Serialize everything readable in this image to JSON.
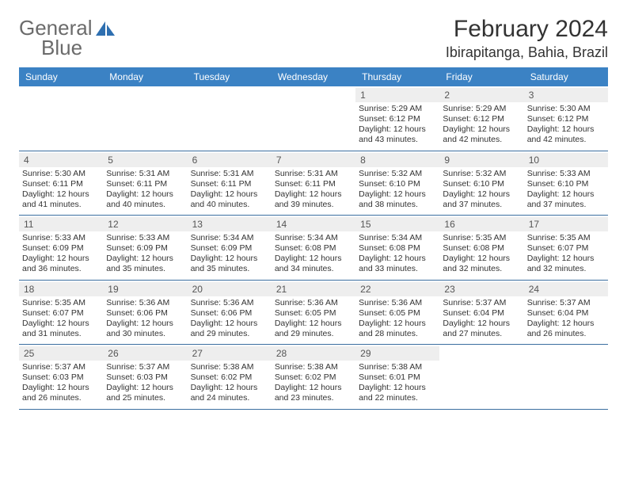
{
  "brand": {
    "part1": "General",
    "part2": "Blue"
  },
  "title": "February 2024",
  "location": "Ibirapitanga, Bahia, Brazil",
  "colors": {
    "header_bg": "#3b82c4",
    "header_text": "#ffffff",
    "daynum_bg": "#eeeeee",
    "border": "#3b6fa0",
    "text": "#333333",
    "logo_text": "#6b6b6b",
    "logo_accent": "#2e6fb0"
  },
  "day_names": [
    "Sunday",
    "Monday",
    "Tuesday",
    "Wednesday",
    "Thursday",
    "Friday",
    "Saturday"
  ],
  "weeks": [
    [
      {
        "num": "",
        "sunrise": "",
        "sunset": "",
        "daylight1": "",
        "daylight2": ""
      },
      {
        "num": "",
        "sunrise": "",
        "sunset": "",
        "daylight1": "",
        "daylight2": ""
      },
      {
        "num": "",
        "sunrise": "",
        "sunset": "",
        "daylight1": "",
        "daylight2": ""
      },
      {
        "num": "",
        "sunrise": "",
        "sunset": "",
        "daylight1": "",
        "daylight2": ""
      },
      {
        "num": "1",
        "sunrise": "Sunrise: 5:29 AM",
        "sunset": "Sunset: 6:12 PM",
        "daylight1": "Daylight: 12 hours",
        "daylight2": "and 43 minutes."
      },
      {
        "num": "2",
        "sunrise": "Sunrise: 5:29 AM",
        "sunset": "Sunset: 6:12 PM",
        "daylight1": "Daylight: 12 hours",
        "daylight2": "and 42 minutes."
      },
      {
        "num": "3",
        "sunrise": "Sunrise: 5:30 AM",
        "sunset": "Sunset: 6:12 PM",
        "daylight1": "Daylight: 12 hours",
        "daylight2": "and 42 minutes."
      }
    ],
    [
      {
        "num": "4",
        "sunrise": "Sunrise: 5:30 AM",
        "sunset": "Sunset: 6:11 PM",
        "daylight1": "Daylight: 12 hours",
        "daylight2": "and 41 minutes."
      },
      {
        "num": "5",
        "sunrise": "Sunrise: 5:31 AM",
        "sunset": "Sunset: 6:11 PM",
        "daylight1": "Daylight: 12 hours",
        "daylight2": "and 40 minutes."
      },
      {
        "num": "6",
        "sunrise": "Sunrise: 5:31 AM",
        "sunset": "Sunset: 6:11 PM",
        "daylight1": "Daylight: 12 hours",
        "daylight2": "and 40 minutes."
      },
      {
        "num": "7",
        "sunrise": "Sunrise: 5:31 AM",
        "sunset": "Sunset: 6:11 PM",
        "daylight1": "Daylight: 12 hours",
        "daylight2": "and 39 minutes."
      },
      {
        "num": "8",
        "sunrise": "Sunrise: 5:32 AM",
        "sunset": "Sunset: 6:10 PM",
        "daylight1": "Daylight: 12 hours",
        "daylight2": "and 38 minutes."
      },
      {
        "num": "9",
        "sunrise": "Sunrise: 5:32 AM",
        "sunset": "Sunset: 6:10 PM",
        "daylight1": "Daylight: 12 hours",
        "daylight2": "and 37 minutes."
      },
      {
        "num": "10",
        "sunrise": "Sunrise: 5:33 AM",
        "sunset": "Sunset: 6:10 PM",
        "daylight1": "Daylight: 12 hours",
        "daylight2": "and 37 minutes."
      }
    ],
    [
      {
        "num": "11",
        "sunrise": "Sunrise: 5:33 AM",
        "sunset": "Sunset: 6:09 PM",
        "daylight1": "Daylight: 12 hours",
        "daylight2": "and 36 minutes."
      },
      {
        "num": "12",
        "sunrise": "Sunrise: 5:33 AM",
        "sunset": "Sunset: 6:09 PM",
        "daylight1": "Daylight: 12 hours",
        "daylight2": "and 35 minutes."
      },
      {
        "num": "13",
        "sunrise": "Sunrise: 5:34 AM",
        "sunset": "Sunset: 6:09 PM",
        "daylight1": "Daylight: 12 hours",
        "daylight2": "and 35 minutes."
      },
      {
        "num": "14",
        "sunrise": "Sunrise: 5:34 AM",
        "sunset": "Sunset: 6:08 PM",
        "daylight1": "Daylight: 12 hours",
        "daylight2": "and 34 minutes."
      },
      {
        "num": "15",
        "sunrise": "Sunrise: 5:34 AM",
        "sunset": "Sunset: 6:08 PM",
        "daylight1": "Daylight: 12 hours",
        "daylight2": "and 33 minutes."
      },
      {
        "num": "16",
        "sunrise": "Sunrise: 5:35 AM",
        "sunset": "Sunset: 6:08 PM",
        "daylight1": "Daylight: 12 hours",
        "daylight2": "and 32 minutes."
      },
      {
        "num": "17",
        "sunrise": "Sunrise: 5:35 AM",
        "sunset": "Sunset: 6:07 PM",
        "daylight1": "Daylight: 12 hours",
        "daylight2": "and 32 minutes."
      }
    ],
    [
      {
        "num": "18",
        "sunrise": "Sunrise: 5:35 AM",
        "sunset": "Sunset: 6:07 PM",
        "daylight1": "Daylight: 12 hours",
        "daylight2": "and 31 minutes."
      },
      {
        "num": "19",
        "sunrise": "Sunrise: 5:36 AM",
        "sunset": "Sunset: 6:06 PM",
        "daylight1": "Daylight: 12 hours",
        "daylight2": "and 30 minutes."
      },
      {
        "num": "20",
        "sunrise": "Sunrise: 5:36 AM",
        "sunset": "Sunset: 6:06 PM",
        "daylight1": "Daylight: 12 hours",
        "daylight2": "and 29 minutes."
      },
      {
        "num": "21",
        "sunrise": "Sunrise: 5:36 AM",
        "sunset": "Sunset: 6:05 PM",
        "daylight1": "Daylight: 12 hours",
        "daylight2": "and 29 minutes."
      },
      {
        "num": "22",
        "sunrise": "Sunrise: 5:36 AM",
        "sunset": "Sunset: 6:05 PM",
        "daylight1": "Daylight: 12 hours",
        "daylight2": "and 28 minutes."
      },
      {
        "num": "23",
        "sunrise": "Sunrise: 5:37 AM",
        "sunset": "Sunset: 6:04 PM",
        "daylight1": "Daylight: 12 hours",
        "daylight2": "and 27 minutes."
      },
      {
        "num": "24",
        "sunrise": "Sunrise: 5:37 AM",
        "sunset": "Sunset: 6:04 PM",
        "daylight1": "Daylight: 12 hours",
        "daylight2": "and 26 minutes."
      }
    ],
    [
      {
        "num": "25",
        "sunrise": "Sunrise: 5:37 AM",
        "sunset": "Sunset: 6:03 PM",
        "daylight1": "Daylight: 12 hours",
        "daylight2": "and 26 minutes."
      },
      {
        "num": "26",
        "sunrise": "Sunrise: 5:37 AM",
        "sunset": "Sunset: 6:03 PM",
        "daylight1": "Daylight: 12 hours",
        "daylight2": "and 25 minutes."
      },
      {
        "num": "27",
        "sunrise": "Sunrise: 5:38 AM",
        "sunset": "Sunset: 6:02 PM",
        "daylight1": "Daylight: 12 hours",
        "daylight2": "and 24 minutes."
      },
      {
        "num": "28",
        "sunrise": "Sunrise: 5:38 AM",
        "sunset": "Sunset: 6:02 PM",
        "daylight1": "Daylight: 12 hours",
        "daylight2": "and 23 minutes."
      },
      {
        "num": "29",
        "sunrise": "Sunrise: 5:38 AM",
        "sunset": "Sunset: 6:01 PM",
        "daylight1": "Daylight: 12 hours",
        "daylight2": "and 22 minutes."
      },
      {
        "num": "",
        "sunrise": "",
        "sunset": "",
        "daylight1": "",
        "daylight2": ""
      },
      {
        "num": "",
        "sunrise": "",
        "sunset": "",
        "daylight1": "",
        "daylight2": ""
      }
    ]
  ]
}
